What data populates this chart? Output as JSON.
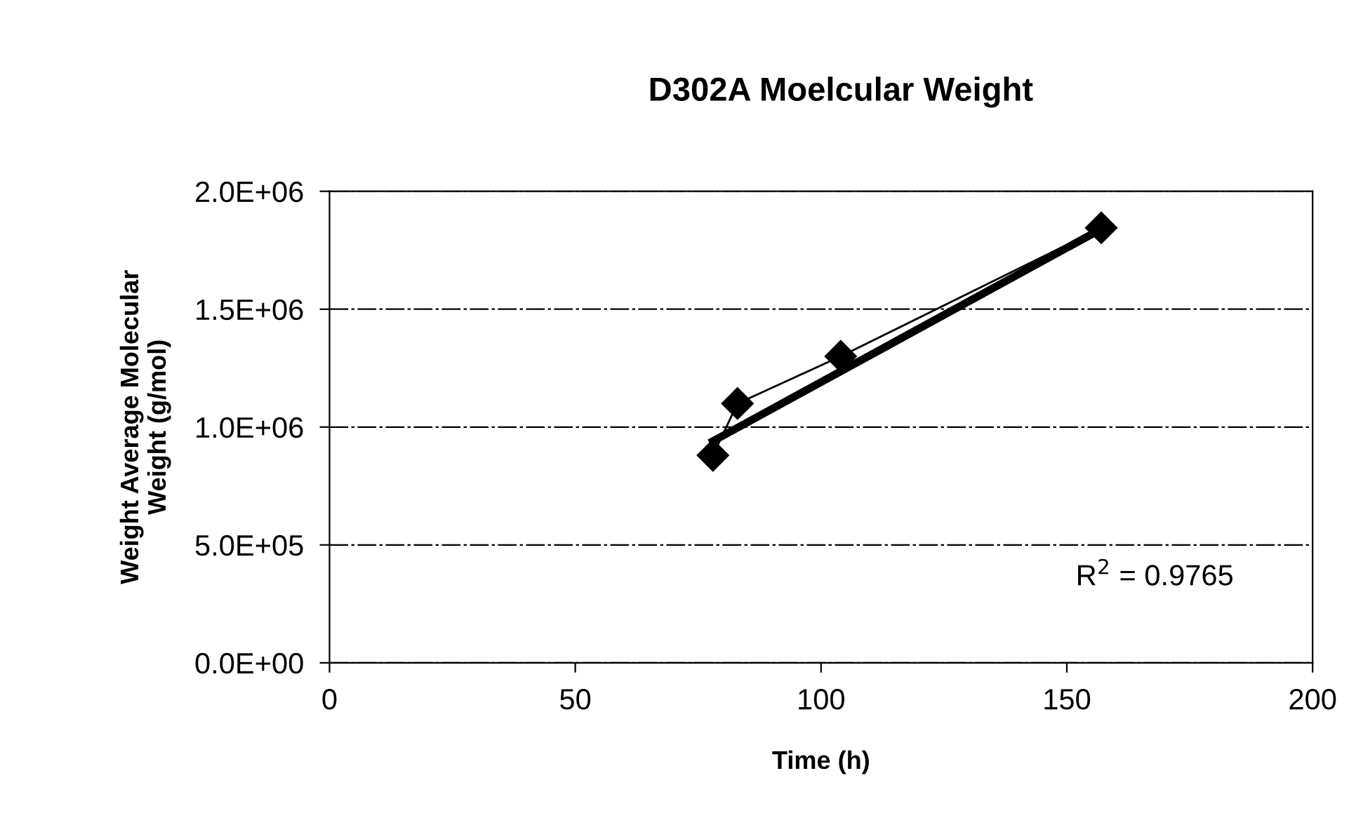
{
  "chart_data": {
    "type": "line",
    "title": "D302A Moelcular Weight",
    "xlabel": "Time (h)",
    "ylabel": "Weight Average Molecular\nWeight (g/mol)",
    "annotations": [
      "R$^{2}$ = 0.9765"
    ],
    "series": [
      {
        "color": "#000000",
        "x": [
          78,
          83,
          104,
          157
        ],
        "values": [
          880000,
          1100000,
          1300000,
          1845000
        ],
        "marker": "diamond",
        "line_style": "solid"
      },
      {
        "color": "#000000",
        "x": [
          78,
          157
        ],
        "values": [
          940000,
          1840000
        ],
        "marker": "none",
        "line_style": "solid"
      }
    ],
    "xlim": [
      0,
      200
    ],
    "xticks": [
      0,
      50,
      100,
      150,
      200
    ],
    "ylim": [
      0,
      2000000
    ],
    "yticks": [
      {
        "value": 0,
        "label": "0.0E+00"
      },
      {
        "value": 500000,
        "label": "5.0E+05"
      },
      {
        "value": 1000000,
        "label": "1.0E+06"
      },
      {
        "value": 1500000,
        "label": "1.5E+06"
      },
      {
        "value": 2000000,
        "label": "2.0E+06"
      }
    ],
    "grid": "y",
    "legend": false
  }
}
